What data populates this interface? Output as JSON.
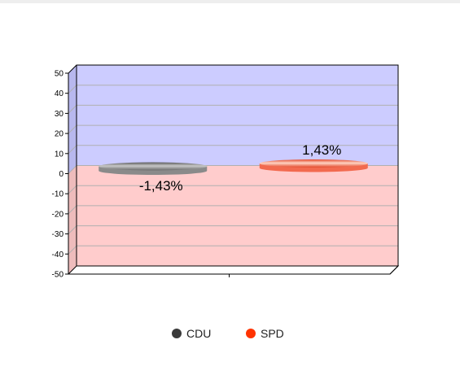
{
  "chart_data": {
    "type": "bar",
    "style": "3d-disc",
    "categories": [
      ""
    ],
    "series": [
      {
        "name": "CDU",
        "values": [
          -1.43
        ],
        "label": "-1,43%",
        "color": "#3a3a3a",
        "bar_color": "#8a8a8a"
      },
      {
        "name": "SPD",
        "values": [
          1.43
        ],
        "label": "1,43%",
        "color": "#ff3300",
        "bar_color": "#f26a4f"
      }
    ],
    "ylim": [
      -50,
      50
    ],
    "yticks": [
      "50",
      "40",
      "30",
      "20",
      "10",
      "0",
      "-10",
      "-20",
      "-30",
      "-40",
      "-50"
    ],
    "ytick_values": [
      50,
      40,
      30,
      20,
      10,
      0,
      -10,
      -20,
      -30,
      -40,
      -50
    ],
    "positive_background": "#ccccff",
    "negative_background": "#ffcccc",
    "grid": true,
    "legend_position": "bottom",
    "title": "",
    "xlabel": "",
    "ylabel": ""
  }
}
